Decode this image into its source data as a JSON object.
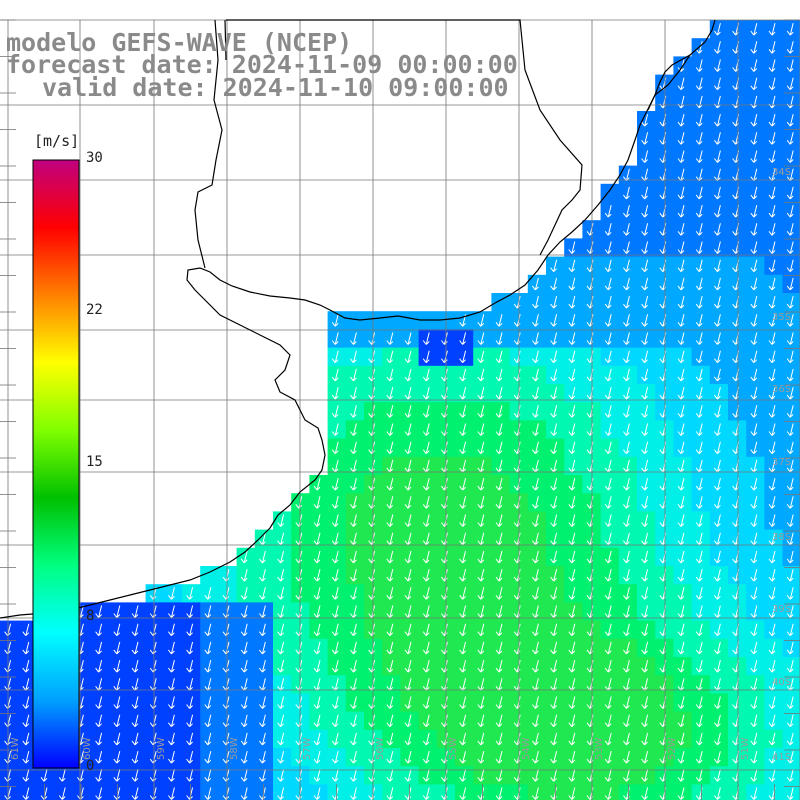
{
  "title": {
    "line1": "modelo GEFS-WAVE (NCEP)",
    "line2": "forecast date: 2024-11-09 00:00:00",
    "line3": "valid date: 2024-11-10 09:00:00"
  },
  "colorbar": {
    "unit": "[m/s]",
    "min": 0,
    "max": 30,
    "ticks": [
      "30",
      "22",
      "15",
      "8",
      "0"
    ],
    "tick_values": [
      30,
      22.5,
      15,
      7.5,
      0
    ],
    "stops": [
      "#0000ff",
      "#00a0ff",
      "#00ffff",
      "#00ff80",
      "#00c000",
      "#80ff00",
      "#ffff00",
      "#ff8000",
      "#ff0000",
      "#c00080"
    ]
  },
  "map": {
    "lon_labels": [
      "61W",
      "60W",
      "59W",
      "58W",
      "57W",
      "56W",
      "55W",
      "54W",
      "53W",
      "52W",
      "51W"
    ],
    "lat_labels": [
      "34S",
      "35S",
      "36S",
      "37S",
      "38S",
      "39S",
      "40S",
      "41S"
    ],
    "wind_direction": "south-southwest"
  }
}
